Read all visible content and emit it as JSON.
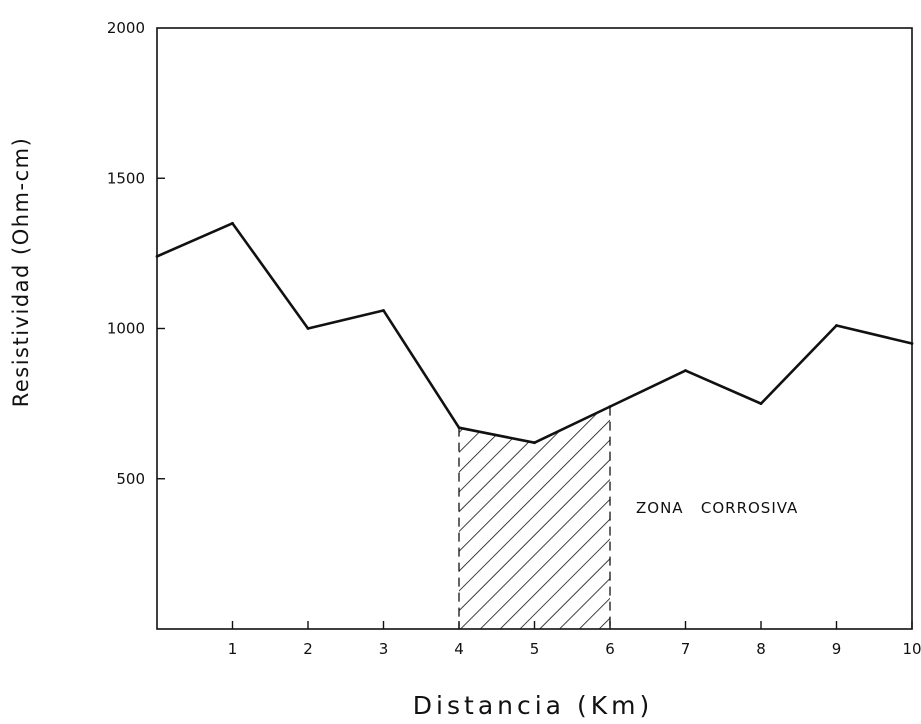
{
  "chart_data": {
    "type": "line",
    "title": "",
    "xlabel": "Distancia (Km)",
    "ylabel": "Resistividad (Ohm-cm)",
    "xlim": [
      0,
      10
    ],
    "ylim": [
      0,
      2000
    ],
    "x_ticks": [
      "1",
      "2",
      "3",
      "4",
      "5",
      "6",
      "7",
      "8",
      "9",
      "10"
    ],
    "y_ticks": [
      "500",
      "1000",
      "1500",
      "2000"
    ],
    "grid": false,
    "series": [
      {
        "x": [
          0,
          1,
          2,
          3,
          4,
          5,
          6,
          7,
          8,
          9,
          10
        ],
        "values": [
          1240,
          1350,
          1000,
          1060,
          670,
          620,
          740,
          860,
          750,
          1010,
          950
        ]
      }
    ],
    "shaded_region": {
      "x_start": 4,
      "x_end": 6
    },
    "annotations": [
      {
        "text": "ZONA   CORROSIVA"
      }
    ],
    "colors": {
      "line": "#111111",
      "hatch": "#111111"
    }
  }
}
